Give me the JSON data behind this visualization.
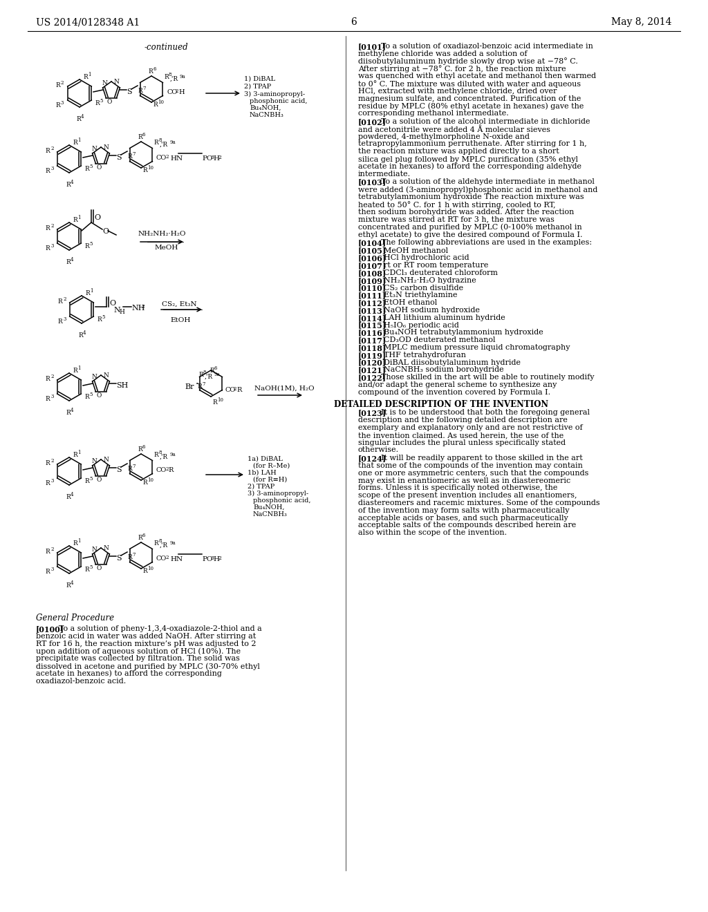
{
  "background_color": "#ffffff",
  "left_header": "US 2014/0128348 A1",
  "right_header": "May 8, 2014",
  "page_number": "6",
  "right_paragraphs": [
    {
      "tag": "[0101]",
      "text": "To a solution of oxadiazol-benzoic acid intermediate in methylene chloride was added a solution of diisobutylaluminum hydride slowly drop wise at −78° C. After stirring at −78° C. for 2 h, the reaction mixture was quenched with ethyl acetate and methanol then warmed to 0° C. The mixture was diluted with water and aqueous HCl, extracted with methylene chloride, dried over magnesium sulfate, and concentrated. Purification of the residue by MPLC (80% ethyl acetate in hexanes) gave the corresponding methanol intermediate."
    },
    {
      "tag": "[0102]",
      "text": "To a solution of the alcohol intermediate in dichloride and acetonitrile were added 4 Å molecular sieves powdered, 4-methylmorpholine N-oxide and tetrapropylammonium perruthenate. After stirring for 1 h, the reaction mixture was applied directly to a short silica gel plug followed by MPLC purification (35% ethyl acetate in hexanes) to afford the corresponding aldehyde intermediate."
    },
    {
      "tag": "[0103]",
      "text": "To a solution of the aldehyde intermediate in methanol were added (3-aminopropyl)phosphonic acid in methanol and tetrabutylammonium hydroxide The reaction mixture was heated to 50° C. for 1 h with stirring, cooled to RT, then sodium borohydride was added. After the reaction mixture was stirred at RT for 3 h, the mixture was concentrated and purified by MPLC (0-100% methanol in ethyl acetate) to give the desired compound of Formula I."
    },
    {
      "tag": "[0104]",
      "text": "The following abbreviations are used in the examples:"
    },
    {
      "tag": "[0105]",
      "text": "MeOH methanol"
    },
    {
      "tag": "[0106]",
      "text": "HCl hydrochloric acid"
    },
    {
      "tag": "[0107]",
      "text": "rt or RT room temperature"
    },
    {
      "tag": "[0108]",
      "text": "CDCl₃ deuterated chloroform"
    },
    {
      "tag": "[0109]",
      "text": "NH₂NH₂·H₂O hydrazine"
    },
    {
      "tag": "[0110]",
      "text": "CS₂ carbon disulfide"
    },
    {
      "tag": "[0111]",
      "text": "Et₃N triethylamine"
    },
    {
      "tag": "[0112]",
      "text": "EtOH ethanol"
    },
    {
      "tag": "[0113]",
      "text": "NaOH sodium hydroxide"
    },
    {
      "tag": "[0114]",
      "text": "LAH lithium aluminum hydride"
    },
    {
      "tag": "[0115]",
      "text": "H₅IO₆ periodic acid"
    },
    {
      "tag": "[0116]",
      "text": "Bu₄NOH tetrabutylammonium hydroxide"
    },
    {
      "tag": "[0117]",
      "text": "CD₃OD deuterated methanol"
    },
    {
      "tag": "[0118]",
      "text": "MPLC medium pressure liquid chromatography"
    },
    {
      "tag": "[0119]",
      "text": "THF tetrahydrofuran"
    },
    {
      "tag": "[0120]",
      "text": "DiBAL diisobutylaluminum hydride"
    },
    {
      "tag": "[0121]",
      "text": "NaCNBH₃ sodium borohydride"
    },
    {
      "tag": "[0122]",
      "text": "Those skilled in the art will be able to routinely modify and/or adapt the general scheme to synthesize any compound of the invention covered by Formula I."
    },
    {
      "tag": "DETAILED",
      "text": "DETAILED DESCRIPTION OF THE INVENTION"
    },
    {
      "tag": "[0123]",
      "text": "It is to be understood that both the foregoing general description and the following detailed description are exemplary and explanatory only and are not restrictive of the invention claimed. As used herein, the use of the singular includes the plural unless specifically stated otherwise."
    },
    {
      "tag": "[0124]",
      "text": "It will be readily apparent to those skilled in the art that some of the compounds of the invention may contain one or more asymmetric centers, such that the compounds may exist in enantiomeric as well as in diastereomeric forms. Unless it is specifically noted otherwise, the scope of the present invention includes all enantiomers, diastereomers and racemic mixtures. Some of the compounds of the invention may form salts with pharmaceutically acceptable acids or bases, and such pharmaceutically acceptable salts of the compounds described herein are also within the scope of the invention."
    }
  ],
  "left_bottom_para_title": "General Procedure",
  "left_bottom_para_tag": "[0100]",
  "left_bottom_para_text": "To a solution of pheny-1,3,4-oxadiazole-2-thiol and a benzoic acid in water was added NaOH. After stirring at RT for 16 h, the reaction mixture’s pH was adjusted to 2 upon addition of aqueous solution of HCl (10%). The precipitate was collected by filtration. The solid was dissolved in acetone and purified by MPLC (30-70% ethyl acetate in hexanes) to afford the corresponding oxadiazol-benzoic acid."
}
